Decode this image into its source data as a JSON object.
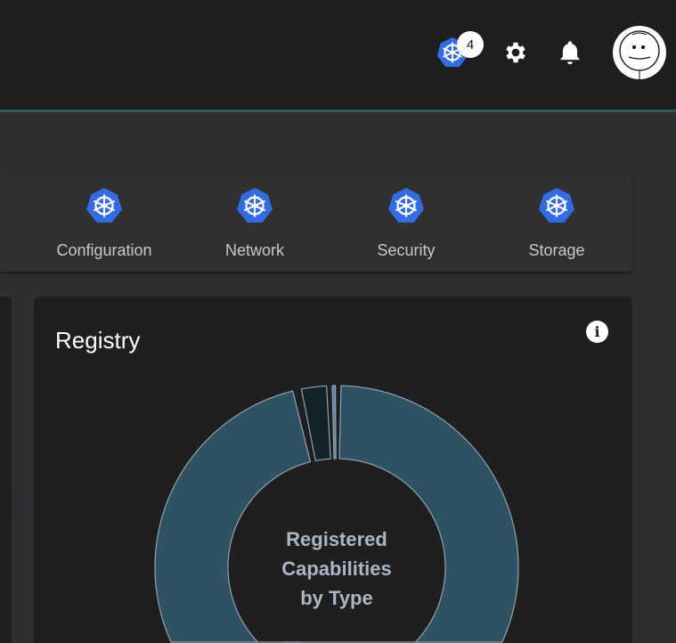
{
  "header": {
    "kubernetes_badge_count": "4",
    "icons": [
      "kubernetes-icon",
      "gear-icon",
      "bell-icon",
      "avatar"
    ]
  },
  "categories": [
    {
      "label": "Configuration",
      "icon": "kubernetes-icon"
    },
    {
      "label": "Network",
      "icon": "kubernetes-icon"
    },
    {
      "label": "Security",
      "icon": "kubernetes-icon"
    },
    {
      "label": "Storage",
      "icon": "kubernetes-icon"
    }
  ],
  "registry": {
    "title": "Registry",
    "info_icon": "info-icon"
  },
  "colors": {
    "accent": "#326ce5",
    "slice": "#2e5262",
    "slice_dark": "#12232b",
    "slice_thin": "#5a87a0",
    "divider": "#2a5a55"
  },
  "chart_data": {
    "type": "pie",
    "donut": true,
    "center_label": [
      "Registered",
      "Capabilities",
      "by Type"
    ],
    "values": [
      55,
      41.5,
      3,
      0.5
    ],
    "colors": [
      "#2e5262",
      "#2e5262",
      "#12232b",
      "#5a87a0"
    ]
  }
}
